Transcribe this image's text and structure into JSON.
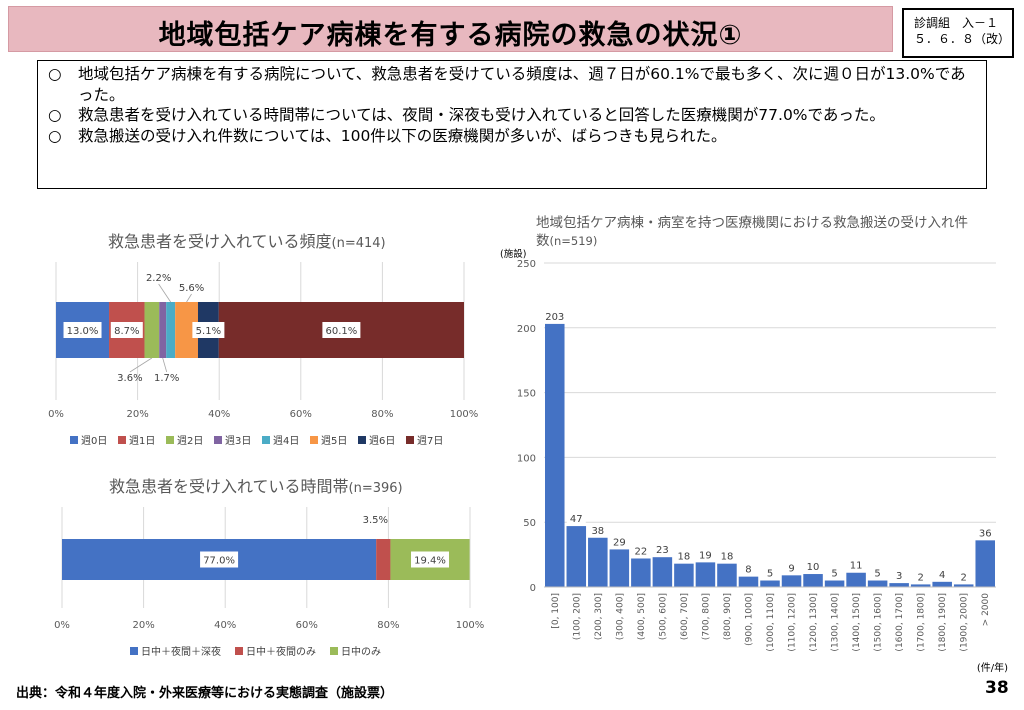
{
  "header": {
    "title": "地域包括ケア病棟を有する病院の救急の状況①",
    "badge_line1": "診調組　入－１",
    "badge_line2": "５．６．８（改）"
  },
  "summary": {
    "bullet": "○",
    "lines": [
      "地域包括ケア病棟を有する病院について、救急患者を受けている頻度は、週７日が60.1%で最も多く、次に週０日が13.0%であった。",
      "救急患者を受け入れている時間帯については、夜間・深夜も受け入れていると回答した医療機関が77.0%であった。",
      "救急搬送の受け入れ件数については、100件以下の医療機関が多いが、ばらつきも見られた。"
    ]
  },
  "chart_data": [
    {
      "type": "bar",
      "orientation": "horizontal-stacked",
      "title": "救急患者を受け入れている頻度",
      "subtitle": "(n=414)",
      "series": [
        {
          "name": "週0日",
          "value": 13.0,
          "label": "13.0%",
          "color": "#4472c4"
        },
        {
          "name": "週1日",
          "value": 8.7,
          "label": "8.7%",
          "color": "#c0504d"
        },
        {
          "name": "週2日",
          "value": 3.6,
          "label": "3.6%",
          "color": "#9bbb59"
        },
        {
          "name": "週3日",
          "value": 1.7,
          "label": "1.7%",
          "color": "#8064a2"
        },
        {
          "name": "週4日",
          "value": 2.2,
          "label": "2.2%",
          "color": "#4bacc6"
        },
        {
          "name": "週5日",
          "value": 5.6,
          "label": "5.6%",
          "color": "#f79646"
        },
        {
          "name": "週6日",
          "value": 5.1,
          "label": "5.1%",
          "color": "#1f3864"
        },
        {
          "name": "週7日",
          "value": 60.1,
          "label": "60.1%",
          "color": "#772c2a"
        }
      ],
      "xticks": [
        "0%",
        "20%",
        "40%",
        "60%",
        "80%",
        "100%"
      ],
      "xlim": [
        0,
        100
      ],
      "legend": "bottom"
    },
    {
      "type": "bar",
      "orientation": "horizontal-stacked",
      "title": "救急患者を受け入れている時間帯",
      "subtitle": "(n=396)",
      "series": [
        {
          "name": "日中＋夜間＋深夜",
          "value": 77.0,
          "label": "77.0%",
          "color": "#4472c4"
        },
        {
          "name": "日中＋夜間のみ",
          "value": 3.5,
          "label": "3.5%",
          "color": "#c0504d"
        },
        {
          "name": "日中のみ",
          "value": 19.4,
          "label": "19.4%",
          "color": "#9bbb59"
        }
      ],
      "xticks": [
        "0%",
        "20%",
        "40%",
        "60%",
        "80%",
        "100%"
      ],
      "xlim": [
        0,
        100
      ],
      "legend": "bottom"
    },
    {
      "type": "bar",
      "title": "地域包括ケア病棟・病室を持つ医療機関における救急搬送の受け入れ件数",
      "subtitle": "(n=519)",
      "ylabel": "(施設)",
      "xlabel": "(件/年)",
      "ylim": [
        0,
        250
      ],
      "yticks": [
        0,
        50,
        100,
        150,
        200,
        250
      ],
      "grid": true,
      "color": "#4472c4",
      "categories": [
        "[0, 100]",
        "(100, 200]",
        "(200, 300]",
        "(300, 400]",
        "(400, 500]",
        "(500, 600]",
        "(600, 700]",
        "(700, 800]",
        "(800, 900]",
        "(900, 1000]",
        "(1000, 1100]",
        "(1100, 1200]",
        "(1200, 1300]",
        "(1300, 1400]",
        "(1400, 1500]",
        "(1500, 1600]",
        "(1600, 1700]",
        "(1700, 1800]",
        "(1800, 1900]",
        "(1900, 2000]",
        "> 2000"
      ],
      "values": [
        203,
        47,
        38,
        29,
        22,
        23,
        18,
        19,
        18,
        8,
        5,
        9,
        10,
        5,
        11,
        5,
        3,
        2,
        4,
        2,
        36
      ]
    }
  ],
  "footer": {
    "source": "出典：令和４年度入院・外来医療等における実態調査（施設票）",
    "page": "38"
  }
}
